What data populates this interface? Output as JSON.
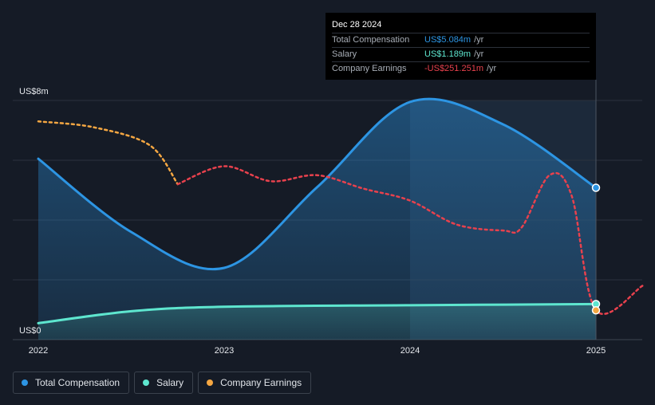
{
  "chart_data": {
    "type": "area",
    "title": "",
    "y_unit_labels": [
      "US$0",
      "US$8m"
    ],
    "ylim": [
      0,
      8
    ],
    "xlim": [
      2022,
      2025.25
    ],
    "x_tick_labels": [
      "2022",
      "2023",
      "2024",
      "2025"
    ],
    "x_tick_values": [
      2022,
      2023,
      2024,
      2025
    ],
    "grid_values": [
      0,
      2,
      4,
      6,
      8
    ],
    "highlight_start": 2024,
    "highlight_end": 2025,
    "series": [
      {
        "name": "Total Compensation",
        "color": "#2d95e3",
        "fill": true,
        "points": [
          [
            2022.0,
            6.05
          ],
          [
            2022.5,
            3.6
          ],
          [
            2023.0,
            2.4
          ],
          [
            2023.5,
            5.1
          ],
          [
            2024.0,
            7.95
          ],
          [
            2024.5,
            7.2
          ],
          [
            2025.0,
            5.08
          ]
        ]
      },
      {
        "name": "Salary",
        "color": "#5ee6cf",
        "fill": true,
        "points": [
          [
            2022.0,
            0.55
          ],
          [
            2022.5,
            0.95
          ],
          [
            2023.0,
            1.1
          ],
          [
            2024.0,
            1.15
          ],
          [
            2025.0,
            1.19
          ]
        ]
      },
      {
        "name": "Company Earnings",
        "color": "#e8414d",
        "color_early": "#f5a742",
        "dashed": true,
        "points": [
          [
            2022.0,
            7.3
          ],
          [
            2022.3,
            7.1
          ],
          [
            2022.6,
            6.5
          ],
          [
            2022.75,
            5.2
          ],
          [
            2023.0,
            5.8
          ],
          [
            2023.25,
            5.3
          ],
          [
            2023.5,
            5.5
          ],
          [
            2023.75,
            5.05
          ],
          [
            2024.0,
            4.65
          ],
          [
            2024.25,
            3.85
          ],
          [
            2024.5,
            3.65
          ],
          [
            2024.6,
            3.75
          ],
          [
            2024.75,
            5.5
          ],
          [
            2024.87,
            4.8
          ],
          [
            2025.0,
            0.98
          ],
          [
            2025.25,
            1.8
          ]
        ]
      }
    ],
    "end_markers": [
      {
        "series": "Total Compensation",
        "x": 2025.0,
        "y": 5.08,
        "color": "#2d95e3"
      },
      {
        "series": "Salary",
        "x": 2025.0,
        "y": 1.19,
        "color": "#5ee6cf"
      },
      {
        "series": "Company Earnings",
        "x": 2025.0,
        "y": 0.98,
        "color": "#f5a742"
      }
    ]
  },
  "tooltip": {
    "date": "Dec 28 2024",
    "rows": [
      {
        "label": "Total Compensation",
        "value": "US$5.084m",
        "unit": "/yr",
        "color": "#2d95e3"
      },
      {
        "label": "Salary",
        "value": "US$1.189m",
        "unit": "/yr",
        "color": "#5ee6cf"
      },
      {
        "label": "Company Earnings",
        "value": "-US$251.251m",
        "unit": "/yr",
        "color": "#e8414d"
      }
    ]
  },
  "legend": {
    "items": [
      {
        "label": "Total Compensation",
        "color": "#2d95e3"
      },
      {
        "label": "Salary",
        "color": "#5ee6cf"
      },
      {
        "label": "Company Earnings",
        "color": "#f5a742"
      }
    ]
  }
}
